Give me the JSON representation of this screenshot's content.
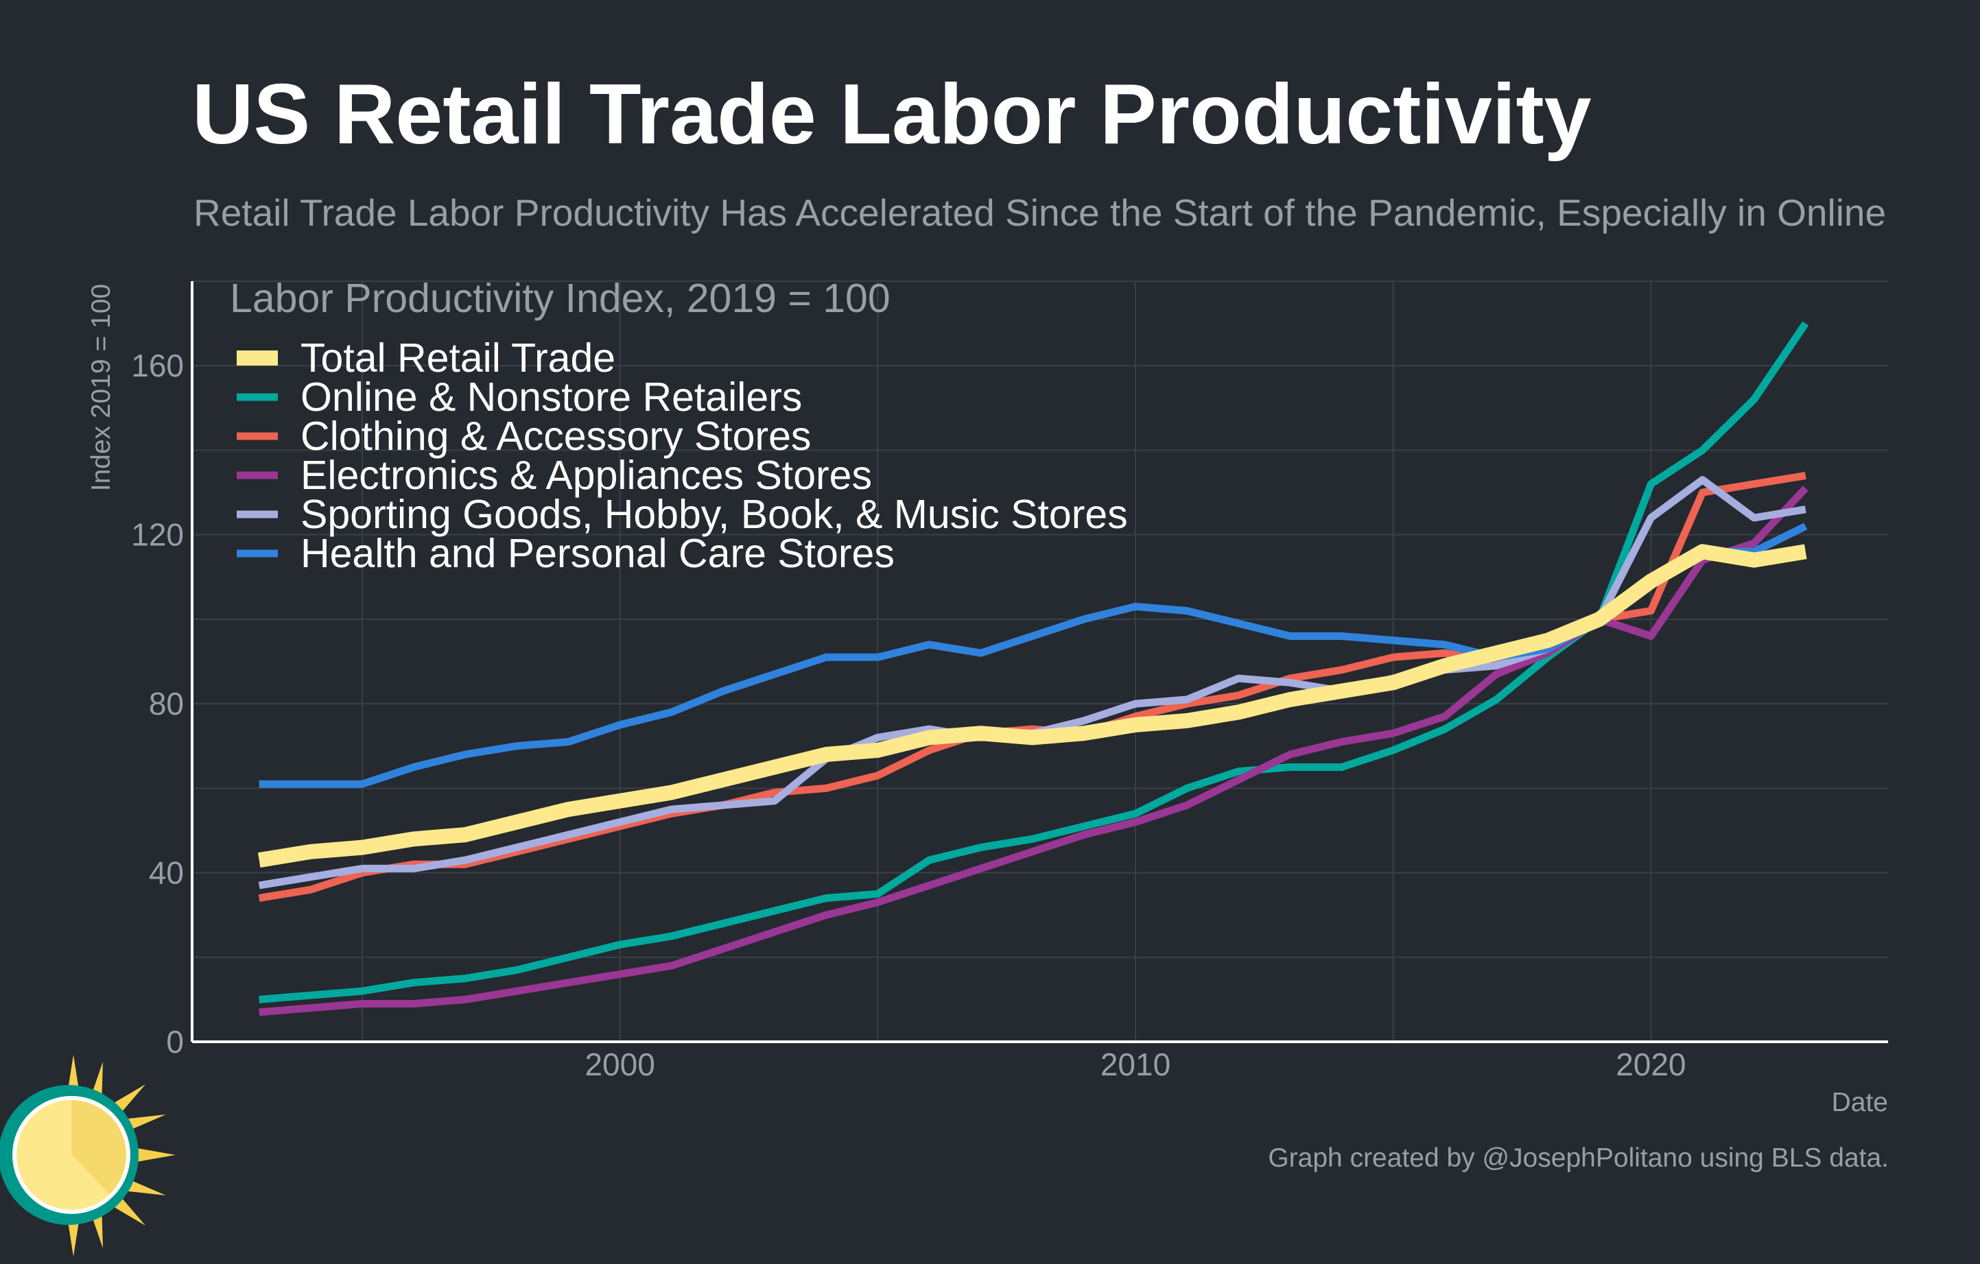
{
  "title": "US Retail Trade Labor Productivity",
  "subtitle": "Retail Trade Labor Productivity Has Accelerated Since the Start of the Pandemic, Especially in Online",
  "footer": "Graph created by @JosephPolitano using BLS data.",
  "colors": {
    "background": "#252930",
    "grid": "#3b3f47",
    "axis": "#ffffff",
    "muted_text": "#9a9ea6",
    "legend_text": "#ffffff"
  },
  "chart_data": {
    "type": "line",
    "title": "US Retail Trade Labor Productivity",
    "legend_title": "Labor Productivity Index, 2019 = 100",
    "legend_position": "top-left",
    "xlabel": "Date",
    "ylabel": "Index 2019 = 100",
    "xlim": [
      1991.7,
      2024.6
    ],
    "ylim": [
      0,
      180
    ],
    "x_ticks": [
      2000,
      2010,
      2020
    ],
    "x_tick_labels": [
      "2000",
      "2010",
      "2020"
    ],
    "y_ticks": [
      0,
      40,
      80,
      120,
      160
    ],
    "y_tick_labels": [
      "0",
      "40",
      "80",
      "120",
      "160"
    ],
    "grid": true,
    "x": [
      1993,
      1994,
      1995,
      1996,
      1997,
      1998,
      1999,
      2000,
      2001,
      2002,
      2003,
      2004,
      2005,
      2006,
      2007,
      2008,
      2009,
      2010,
      2011,
      2012,
      2013,
      2014,
      2015,
      2016,
      2017,
      2018,
      2019,
      2020,
      2021,
      2022,
      2023
    ],
    "series": [
      {
        "name": "Total Retail Trade",
        "color": "#fde98c",
        "values": [
          43,
          45,
          46,
          48,
          49,
          52,
          55,
          57,
          59,
          62,
          65,
          68,
          69,
          72,
          73,
          72,
          73,
          75,
          76,
          78,
          81,
          83,
          85,
          89,
          92,
          95,
          100,
          109,
          116,
          114,
          116
        ]
      },
      {
        "name": "Online & Nonstore Retailers",
        "color": "#00a99d",
        "values": [
          10,
          11,
          12,
          14,
          15,
          17,
          20,
          23,
          25,
          28,
          31,
          34,
          35,
          43,
          46,
          48,
          51,
          54,
          60,
          64,
          65,
          65,
          69,
          74,
          81,
          91,
          100,
          132,
          140,
          152,
          170
        ]
      },
      {
        "name": "Clothing & Accessory Stores",
        "color": "#ee6352",
        "values": [
          34,
          36,
          40,
          42,
          42,
          45,
          48,
          51,
          54,
          56,
          59,
          60,
          63,
          69,
          73,
          74,
          73,
          77,
          80,
          82,
          86,
          88,
          91,
          92,
          90,
          93,
          100,
          102,
          130,
          132,
          134
        ]
      },
      {
        "name": "Electronics & Appliances Stores",
        "color": "#9a3794",
        "values": [
          7,
          8,
          9,
          9,
          10,
          12,
          14,
          16,
          18,
          22,
          26,
          30,
          33,
          37,
          41,
          45,
          49,
          52,
          56,
          62,
          68,
          71,
          73,
          77,
          87,
          92,
          100,
          96,
          114,
          118,
          131
        ]
      },
      {
        "name": "Sporting Goods, Hobby, Book, & Music Stores",
        "color": "#a6aee0",
        "values": [
          37,
          39,
          41,
          41,
          43,
          46,
          49,
          52,
          55,
          56,
          57,
          67,
          72,
          74,
          72,
          73,
          76,
          80,
          81,
          86,
          85,
          83,
          86,
          88,
          89,
          93,
          100,
          124,
          133,
          124,
          126
        ]
      },
      {
        "name": "Health and Personal Care Stores",
        "color": "#3083dc",
        "values": [
          61,
          61,
          61,
          65,
          68,
          70,
          71,
          75,
          78,
          83,
          87,
          91,
          91,
          94,
          92,
          96,
          100,
          103,
          102,
          99,
          96,
          96,
          95,
          94,
          91,
          93,
          100,
          110,
          116,
          116,
          122
        ]
      }
    ]
  }
}
